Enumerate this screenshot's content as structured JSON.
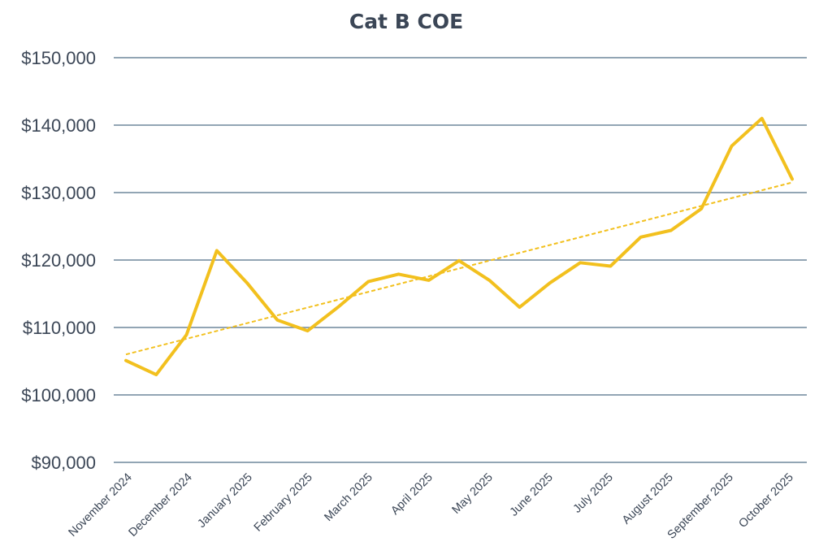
{
  "chart_data": {
    "type": "line",
    "title": "Cat B COE",
    "xlabel": "",
    "ylabel": "",
    "ylim": [
      90000,
      150000
    ],
    "yticks": [
      90000,
      100000,
      110000,
      120000,
      130000,
      140000,
      150000
    ],
    "ytick_labels": [
      "$90,000",
      "$100,000",
      "$110,000",
      "$120,000",
      "$130,000",
      "$140,000",
      "$150,000"
    ],
    "xtick_labels": [
      "November 2024",
      "December 2024",
      "January 2025",
      "February 2025",
      "March 2025",
      "April 2025",
      "May 2025",
      "June 2025",
      "July 2025",
      "August 2025",
      "September 2025",
      "October 2025"
    ],
    "grid": true,
    "legend": "none",
    "series": [
      {
        "values": [
          105100,
          103000,
          108900,
          121400,
          116600,
          111100,
          109500,
          113000,
          116800,
          117900,
          117000,
          119900,
          117000,
          113000,
          116600,
          119600,
          119100,
          123400,
          124400,
          127600,
          136900,
          141000,
          132000
        ],
        "color": "#f2c01e"
      }
    ],
    "trendline": {
      "type": "linear",
      "start": 106000,
      "end": 131500,
      "color": "#f2c01e",
      "style": "dashed"
    }
  }
}
